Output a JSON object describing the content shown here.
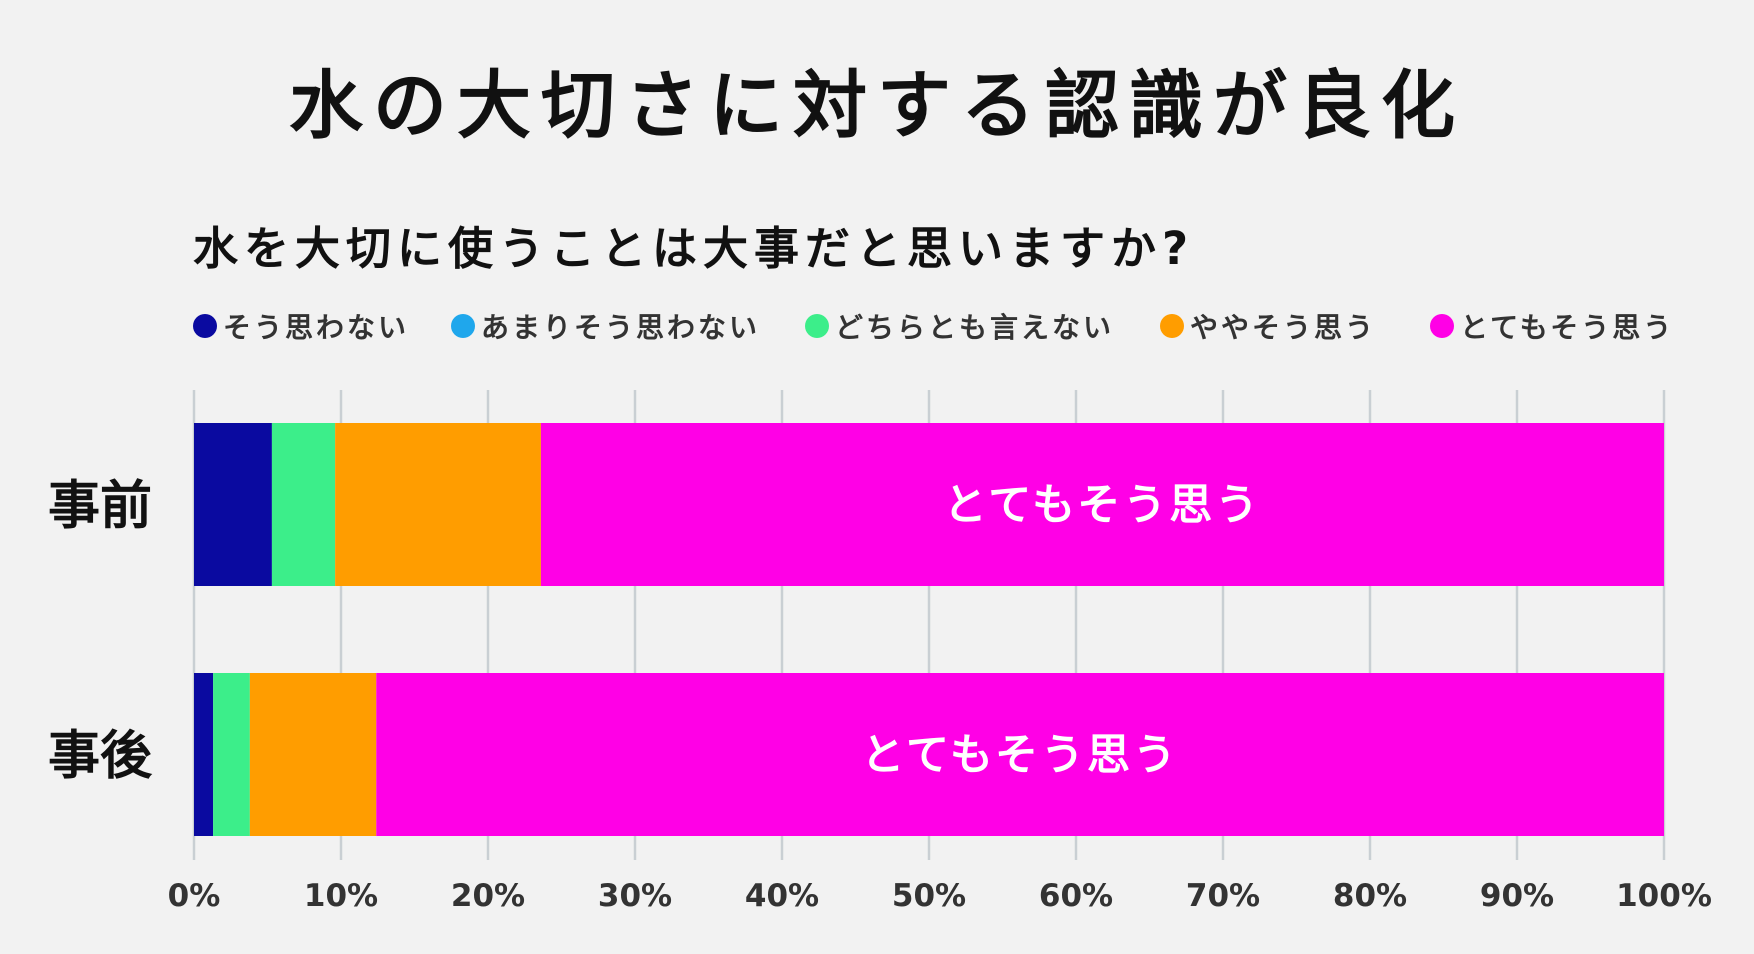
{
  "title": "水の大切さに対する認識が良化",
  "chart_data": {
    "type": "bar",
    "orientation": "horizontal",
    "stacked": true,
    "title": "水を大切に使うことは大事だと思いますか?",
    "categories": [
      "事前",
      "事後"
    ],
    "series": [
      {
        "name": "そう思わない",
        "color": "#0a0aa0",
        "values": [
          5.3,
          1.3
        ]
      },
      {
        "name": "あまりそう思わない",
        "color": "#1fa7ec",
        "values": [
          0.0,
          0.0
        ]
      },
      {
        "name": "どちらとも言えない",
        "color": "#3cee8a",
        "values": [
          4.3,
          2.5
        ]
      },
      {
        "name": "ややそう思う",
        "color": "#ff9d00",
        "values": [
          14.0,
          8.6
        ]
      },
      {
        "name": "とてもそう思う",
        "color": "#ff00e6",
        "values": [
          76.4,
          87.6
        ]
      }
    ],
    "bar_labels": [
      "とてもそう思う",
      "とてもそう思う"
    ],
    "x_ticks": [
      "0%",
      "10%",
      "20%",
      "30%",
      "40%",
      "50%",
      "60%",
      "70%",
      "80%",
      "90%",
      "100%"
    ],
    "xlim": [
      0,
      100
    ],
    "grid": true,
    "legend_position": "top"
  }
}
